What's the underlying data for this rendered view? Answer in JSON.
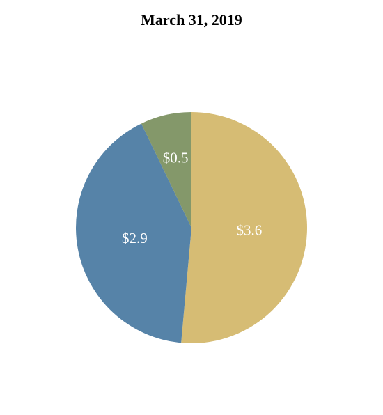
{
  "chart_data": {
    "type": "pie",
    "title": "March 31, 2019",
    "slices": [
      {
        "label": "$3.6",
        "value": 3.6,
        "color": "#d6bc74"
      },
      {
        "label": "$2.9",
        "value": 2.9,
        "color": "#5683a8"
      },
      {
        "label": "$0.5",
        "value": 0.5,
        "color": "#84986a"
      }
    ],
    "start_angle_deg": 0,
    "direction": "clockwise",
    "legend": "none"
  }
}
